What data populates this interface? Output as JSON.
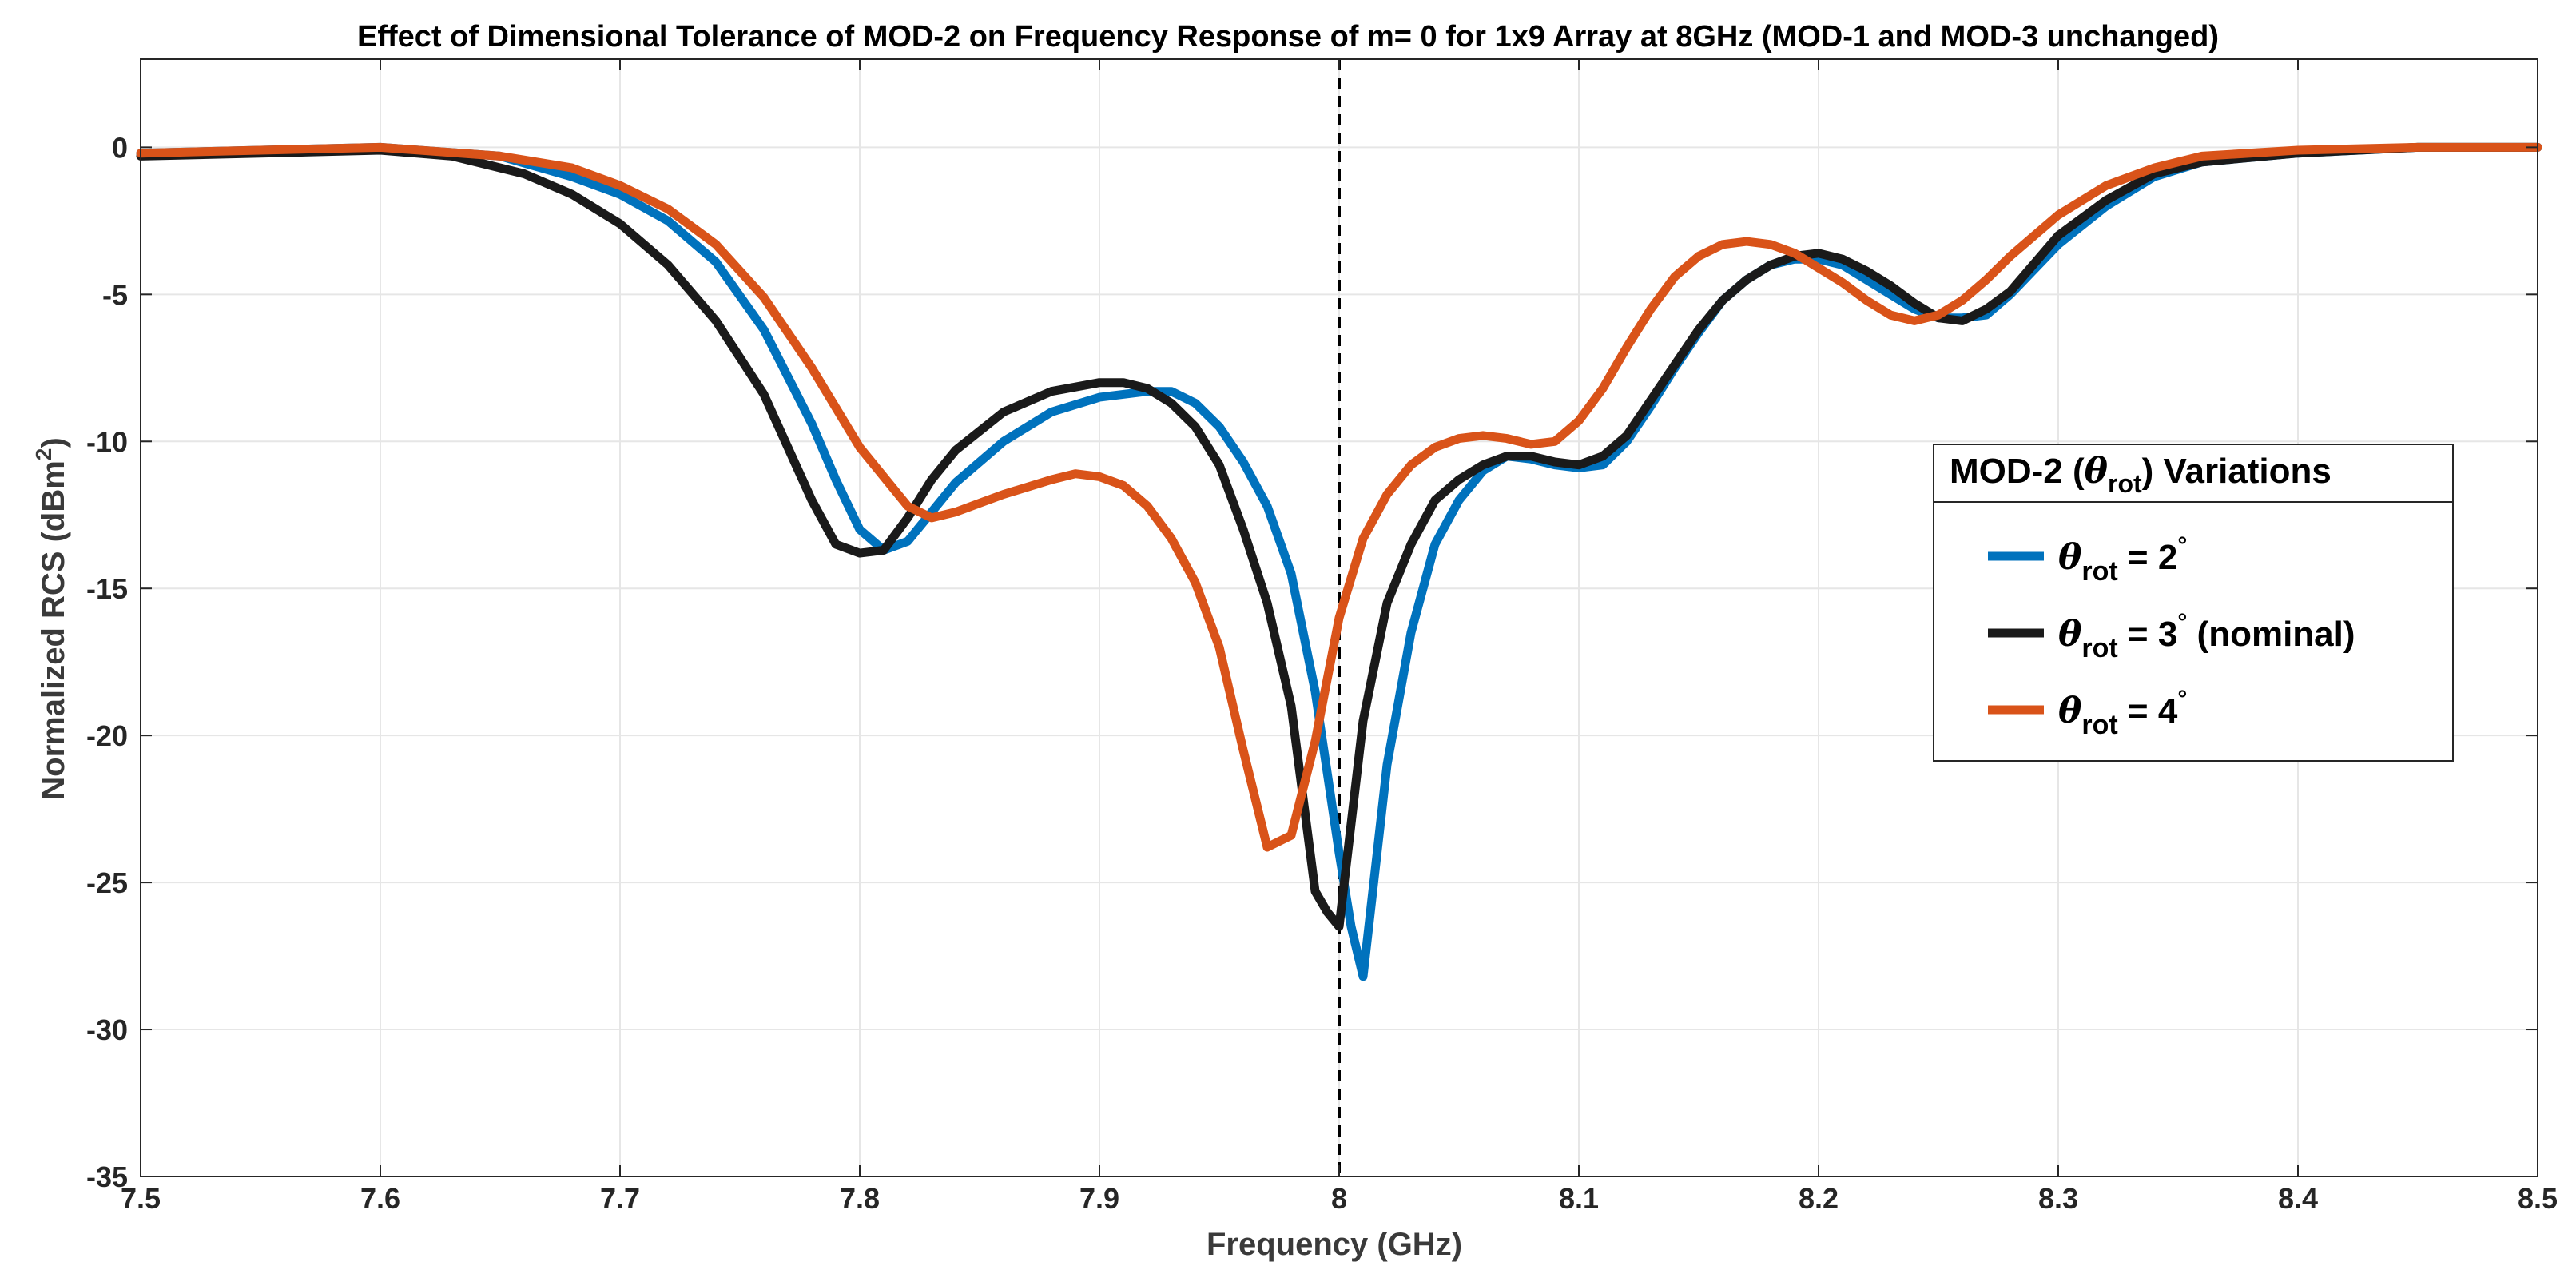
{
  "chart_data": {
    "type": "line",
    "title": "Effect of Dimensional Tolerance of MOD-2 on Frequency Response of m= 0 for 1x9 Array at 8GHz (MOD-1 and MOD-3 unchanged)",
    "xlabel": "Frequency (GHz)",
    "ylabel": "Normalized RCS (dBm²)",
    "ylabel_main": "Normalized RCS (dBm",
    "ylabel_sup": "2",
    "ylabel_close": ")",
    "xlim": [
      7.5,
      8.5
    ],
    "ylim": [
      -35,
      3
    ],
    "xticks": [
      7.5,
      7.6,
      7.7,
      7.8,
      7.9,
      8.0,
      8.1,
      8.2,
      8.3,
      8.4,
      8.5
    ],
    "xtick_labels": [
      "7.5",
      "7.6",
      "7.7",
      "7.8",
      "7.9",
      "8",
      "8.1",
      "8.2",
      "8.3",
      "8.4",
      "8.5"
    ],
    "yticks": [
      0,
      -5,
      -10,
      -15,
      -20,
      -25,
      -30,
      -35
    ],
    "ytick_labels": [
      "0",
      "-5",
      "-10",
      "-15",
      "-20",
      "-25",
      "-30",
      "-35"
    ],
    "grid": true,
    "reference_line_x": 8.0,
    "legend": {
      "title_prefix": "MOD-2 (",
      "title_symbol": "θ",
      "title_sub": "rot",
      "title_suffix": ") Variations",
      "placement": "right"
    },
    "series": [
      {
        "name": "θrot = 2°",
        "symbol": "θ",
        "sub": "rot",
        "eq": " = 2",
        "deg": "°",
        "extra": "",
        "color": "#0072BD",
        "x": [
          7.5,
          7.55,
          7.6,
          7.65,
          7.68,
          7.7,
          7.72,
          7.74,
          7.76,
          7.78,
          7.79,
          7.8,
          7.81,
          7.82,
          7.83,
          7.84,
          7.86,
          7.88,
          7.9,
          7.92,
          7.93,
          7.94,
          7.95,
          7.96,
          7.97,
          7.98,
          7.99,
          8.0,
          8.005,
          8.01,
          8.02,
          8.03,
          8.04,
          8.05,
          8.06,
          8.07,
          8.08,
          8.09,
          8.1,
          8.11,
          8.12,
          8.13,
          8.14,
          8.15,
          8.16,
          8.17,
          8.18,
          8.19,
          8.2,
          8.21,
          8.22,
          8.23,
          8.24,
          8.25,
          8.26,
          8.27,
          8.28,
          8.3,
          8.32,
          8.34,
          8.36,
          8.4,
          8.45,
          8.5
        ],
        "values": [
          -0.2,
          -0.1,
          0.0,
          -0.3,
          -1.0,
          -1.6,
          -2.5,
          -3.9,
          -6.2,
          -9.4,
          -11.3,
          -13.0,
          -13.7,
          -13.4,
          -12.4,
          -11.4,
          -10.0,
          -9.0,
          -8.5,
          -8.3,
          -8.3,
          -8.7,
          -9.5,
          -10.7,
          -12.2,
          -14.5,
          -18.5,
          -24.0,
          -26.5,
          -28.2,
          -21.0,
          -16.5,
          -13.5,
          -12.0,
          -11.0,
          -10.5,
          -10.6,
          -10.8,
          -10.9,
          -10.8,
          -10.0,
          -8.8,
          -7.5,
          -6.3,
          -5.2,
          -4.5,
          -4.0,
          -3.8,
          -3.8,
          -4.0,
          -4.5,
          -5.0,
          -5.5,
          -5.8,
          -5.8,
          -5.7,
          -5.0,
          -3.3,
          -2.0,
          -1.0,
          -0.5,
          -0.2,
          0.0,
          0.0
        ]
      },
      {
        "name": "θrot = 3° (nominal)",
        "symbol": "θ",
        "sub": "rot",
        "eq": " = 3",
        "deg": "°",
        "extra": " (nominal)",
        "color": "#1a1a1a",
        "x": [
          7.5,
          7.55,
          7.6,
          7.63,
          7.66,
          7.68,
          7.7,
          7.72,
          7.74,
          7.76,
          7.77,
          7.78,
          7.79,
          7.8,
          7.81,
          7.82,
          7.83,
          7.84,
          7.86,
          7.88,
          7.9,
          7.91,
          7.92,
          7.93,
          7.94,
          7.95,
          7.96,
          7.97,
          7.98,
          7.99,
          7.995,
          8.0,
          8.01,
          8.02,
          8.03,
          8.04,
          8.05,
          8.06,
          8.07,
          8.08,
          8.09,
          8.1,
          8.11,
          8.12,
          8.13,
          8.14,
          8.15,
          8.16,
          8.17,
          8.18,
          8.19,
          8.2,
          8.21,
          8.22,
          8.23,
          8.24,
          8.25,
          8.26,
          8.27,
          8.28,
          8.3,
          8.32,
          8.34,
          8.36,
          8.4,
          8.45,
          8.5
        ],
        "values": [
          -0.3,
          -0.2,
          -0.1,
          -0.3,
          -0.9,
          -1.6,
          -2.6,
          -4.0,
          -5.9,
          -8.4,
          -10.2,
          -12.0,
          -13.5,
          -13.8,
          -13.7,
          -12.6,
          -11.3,
          -10.3,
          -9.0,
          -8.3,
          -8.0,
          -8.0,
          -8.2,
          -8.7,
          -9.5,
          -10.8,
          -13.0,
          -15.5,
          -19.0,
          -25.3,
          -26.0,
          -26.5,
          -19.5,
          -15.5,
          -13.5,
          -12.0,
          -11.3,
          -10.8,
          -10.5,
          -10.5,
          -10.7,
          -10.8,
          -10.5,
          -9.8,
          -8.6,
          -7.4,
          -6.2,
          -5.2,
          -4.5,
          -4.0,
          -3.7,
          -3.6,
          -3.8,
          -4.2,
          -4.7,
          -5.3,
          -5.8,
          -5.9,
          -5.5,
          -4.9,
          -3.0,
          -1.8,
          -0.9,
          -0.5,
          -0.2,
          0.0,
          0.0
        ]
      },
      {
        "name": "θrot = 4°",
        "symbol": "θ",
        "sub": "rot",
        "eq": " = 4",
        "deg": "°",
        "extra": "",
        "color": "#D95319",
        "x": [
          7.5,
          7.55,
          7.6,
          7.65,
          7.68,
          7.7,
          7.72,
          7.74,
          7.76,
          7.78,
          7.8,
          7.82,
          7.83,
          7.84,
          7.85,
          7.86,
          7.88,
          7.89,
          7.9,
          7.91,
          7.92,
          7.93,
          7.94,
          7.95,
          7.96,
          7.97,
          7.98,
          7.99,
          8.0,
          8.01,
          8.02,
          8.03,
          8.04,
          8.05,
          8.06,
          8.07,
          8.08,
          8.09,
          8.1,
          8.11,
          8.12,
          8.13,
          8.14,
          8.15,
          8.16,
          8.17,
          8.18,
          8.19,
          8.2,
          8.21,
          8.22,
          8.23,
          8.24,
          8.25,
          8.26,
          8.27,
          8.28,
          8.3,
          8.32,
          8.34,
          8.36,
          8.4,
          8.45,
          8.5
        ],
        "values": [
          -0.2,
          -0.1,
          0.0,
          -0.3,
          -0.7,
          -1.3,
          -2.1,
          -3.3,
          -5.1,
          -7.5,
          -10.2,
          -12.2,
          -12.6,
          -12.4,
          -12.1,
          -11.8,
          -11.3,
          -11.1,
          -11.2,
          -11.5,
          -12.2,
          -13.3,
          -14.8,
          -17.0,
          -20.5,
          -23.8,
          -23.4,
          -20.2,
          -16.0,
          -13.3,
          -11.8,
          -10.8,
          -10.2,
          -9.9,
          -9.8,
          -9.9,
          -10.1,
          -10.0,
          -9.3,
          -8.2,
          -6.8,
          -5.5,
          -4.4,
          -3.7,
          -3.3,
          -3.2,
          -3.3,
          -3.6,
          -4.1,
          -4.6,
          -5.2,
          -5.7,
          -5.9,
          -5.7,
          -5.2,
          -4.5,
          -3.7,
          -2.3,
          -1.3,
          -0.7,
          -0.3,
          -0.1,
          0.0,
          0.0
        ]
      }
    ]
  }
}
